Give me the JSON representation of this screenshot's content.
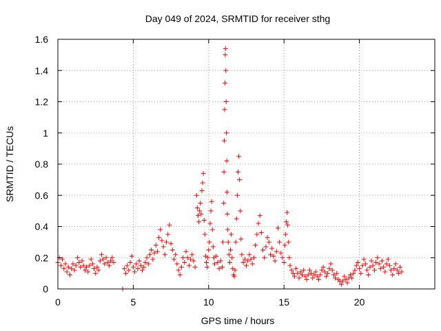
{
  "chart_data": {
    "type": "scatter",
    "title": "Day 049 of 2024, SRMTID for receiver sthg",
    "xlabel": "GPS time / hours",
    "ylabel": "SRMTID / TECUs",
    "xlim": [
      0,
      25
    ],
    "ylim": [
      0,
      1.6
    ],
    "xticks": [
      0,
      5,
      10,
      15,
      20
    ],
    "xtick_labels": [
      "0",
      "5",
      "10",
      "15",
      "20"
    ],
    "yticks": [
      0,
      0.2,
      0.4,
      0.6,
      0.8,
      1,
      1.2,
      1.4,
      1.6
    ],
    "ytick_labels": [
      "0",
      "0.2",
      "0.4",
      "0.6",
      "0.8",
      "1",
      "1.2",
      "1.4",
      "1.6"
    ],
    "grid": true,
    "marker": "+",
    "marker_color": "#ff0000",
    "series": [
      {
        "name": "SRMTID",
        "points": [
          [
            0.0,
            0.17
          ],
          [
            0.1,
            0.2
          ],
          [
            0.2,
            0.15
          ],
          [
            0.3,
            0.19
          ],
          [
            0.4,
            0.13
          ],
          [
            0.5,
            0.16
          ],
          [
            0.6,
            0.11
          ],
          [
            0.7,
            0.14
          ],
          [
            0.8,
            0.09
          ],
          [
            0.9,
            0.13
          ],
          [
            1.0,
            0.16
          ],
          [
            1.1,
            0.12
          ],
          [
            1.2,
            0.15
          ],
          [
            1.3,
            0.2
          ],
          [
            1.4,
            0.17
          ],
          [
            1.5,
            0.14
          ],
          [
            1.6,
            0.18
          ],
          [
            1.7,
            0.15
          ],
          [
            1.8,
            0.12
          ],
          [
            1.9,
            0.14
          ],
          [
            2.0,
            0.11
          ],
          [
            2.1,
            0.15
          ],
          [
            2.2,
            0.19
          ],
          [
            2.3,
            0.16
          ],
          [
            2.4,
            0.13
          ],
          [
            2.5,
            0.1
          ],
          [
            2.6,
            0.14
          ],
          [
            2.7,
            0.12
          ],
          [
            2.8,
            0.18
          ],
          [
            2.9,
            0.22
          ],
          [
            3.0,
            0.19
          ],
          [
            3.1,
            0.16
          ],
          [
            3.2,
            0.2
          ],
          [
            3.3,
            0.17
          ],
          [
            3.4,
            0.15
          ],
          [
            3.5,
            0.18
          ],
          [
            3.6,
            0.2
          ],
          [
            3.7,
            0.17
          ],
          [
            4.3,
            0.0
          ],
          [
            4.4,
            0.13
          ],
          [
            4.5,
            0.1
          ],
          [
            4.6,
            0.15
          ],
          [
            4.7,
            0.12
          ],
          [
            4.8,
            0.17
          ],
          [
            4.9,
            0.21
          ],
          [
            5.0,
            0.14
          ],
          [
            5.1,
            0.11
          ],
          [
            5.2,
            0.16
          ],
          [
            5.3,
            0.13
          ],
          [
            5.4,
            0.18
          ],
          [
            5.5,
            0.15
          ],
          [
            5.6,
            0.12
          ],
          [
            5.7,
            0.14
          ],
          [
            5.8,
            0.17
          ],
          [
            5.9,
            0.2
          ],
          [
            6.0,
            0.16
          ],
          [
            6.1,
            0.22
          ],
          [
            6.2,
            0.25
          ],
          [
            6.3,
            0.19
          ],
          [
            6.4,
            0.23
          ],
          [
            6.5,
            0.28
          ],
          [
            6.6,
            0.24
          ],
          [
            6.7,
            0.33
          ],
          [
            6.8,
            0.38
          ],
          [
            6.9,
            0.31
          ],
          [
            7.0,
            0.27
          ],
          [
            7.1,
            0.22
          ],
          [
            7.2,
            0.3
          ],
          [
            7.3,
            0.35
          ],
          [
            7.4,
            0.41
          ],
          [
            7.5,
            0.29
          ],
          [
            7.6,
            0.25
          ],
          [
            7.7,
            0.19
          ],
          [
            7.8,
            0.22
          ],
          [
            7.9,
            0.16
          ],
          [
            8.0,
            0.12
          ],
          [
            8.1,
            0.09
          ],
          [
            8.2,
            0.14
          ],
          [
            8.3,
            0.2
          ],
          [
            8.4,
            0.17
          ],
          [
            8.5,
            0.24
          ],
          [
            8.6,
            0.2
          ],
          [
            8.7,
            0.15
          ],
          [
            8.8,
            0.19
          ],
          [
            8.9,
            0.22
          ],
          [
            9.0,
            0.18
          ],
          [
            9.1,
            0.14
          ],
          [
            9.2,
            0.6
          ],
          [
            9.25,
            0.52
          ],
          [
            9.3,
            0.47
          ],
          [
            9.35,
            0.43
          ],
          [
            9.4,
            0.5
          ],
          [
            9.45,
            0.55
          ],
          [
            9.5,
            0.48
          ],
          [
            9.55,
            0.63
          ],
          [
            9.6,
            0.68
          ],
          [
            9.65,
            0.74
          ],
          [
            9.7,
            0.44
          ],
          [
            9.75,
            0.35
          ],
          [
            9.8,
            0.21
          ],
          [
            9.85,
            0.17
          ],
          [
            9.9,
            0.14
          ],
          [
            9.95,
            0.2
          ],
          [
            10.0,
            0.25
          ],
          [
            10.05,
            0.3
          ],
          [
            10.1,
            0.42
          ],
          [
            10.15,
            0.5
          ],
          [
            10.2,
            0.56
          ],
          [
            10.25,
            0.38
          ],
          [
            10.3,
            0.27
          ],
          [
            10.35,
            0.2
          ],
          [
            10.4,
            0.16
          ],
          [
            10.5,
            0.21
          ],
          [
            10.6,
            0.17
          ],
          [
            10.7,
            0.13
          ],
          [
            10.8,
            0.18
          ],
          [
            10.9,
            0.14
          ],
          [
            10.95,
            0.3
          ],
          [
            11.0,
            0.55
          ],
          [
            11.02,
            0.75
          ],
          [
            11.04,
            0.95
          ],
          [
            11.06,
            1.15
          ],
          [
            11.08,
            1.32
          ],
          [
            11.1,
            1.5
          ],
          [
            11.12,
            1.54
          ],
          [
            11.14,
            1.4
          ],
          [
            11.16,
            1.2
          ],
          [
            11.18,
            1.0
          ],
          [
            11.2,
            0.82
          ],
          [
            11.22,
            0.62
          ],
          [
            11.24,
            0.48
          ],
          [
            11.26,
            0.38
          ],
          [
            11.3,
            0.3
          ],
          [
            11.35,
            0.22
          ],
          [
            11.4,
            0.17
          ],
          [
            11.45,
            0.25
          ],
          [
            11.5,
            0.35
          ],
          [
            11.55,
            0.2
          ],
          [
            11.6,
            0.13
          ],
          [
            11.65,
            0.09
          ],
          [
            11.7,
            0.08
          ],
          [
            11.75,
            0.12
          ],
          [
            11.8,
            0.3
          ],
          [
            11.85,
            0.45
          ],
          [
            11.9,
            0.6
          ],
          [
            11.95,
            0.75
          ],
          [
            12.0,
            0.85
          ],
          [
            12.05,
            0.7
          ],
          [
            12.1,
            0.5
          ],
          [
            12.15,
            0.32
          ],
          [
            12.2,
            0.22
          ],
          [
            12.3,
            0.17
          ],
          [
            12.4,
            0.19
          ],
          [
            12.5,
            0.15
          ],
          [
            12.6,
            0.18
          ],
          [
            12.7,
            0.22
          ],
          [
            12.8,
            0.19
          ],
          [
            12.9,
            0.16
          ],
          [
            13.0,
            0.2
          ],
          [
            13.1,
            0.28
          ],
          [
            13.2,
            0.35
          ],
          [
            13.3,
            0.42
          ],
          [
            13.4,
            0.47
          ],
          [
            13.5,
            0.36
          ],
          [
            13.6,
            0.25
          ],
          [
            13.7,
            0.2
          ],
          [
            13.8,
            0.27
          ],
          [
            13.9,
            0.33
          ],
          [
            14.0,
            0.3
          ],
          [
            14.1,
            0.22
          ],
          [
            14.2,
            0.26
          ],
          [
            14.3,
            0.21
          ],
          [
            14.4,
            0.18
          ],
          [
            14.5,
            0.24
          ],
          [
            14.6,
            0.39
          ],
          [
            14.7,
            0.3
          ],
          [
            14.8,
            0.23
          ],
          [
            14.9,
            0.2
          ],
          [
            15.0,
            0.17
          ],
          [
            15.05,
            0.28
          ],
          [
            15.1,
            0.35
          ],
          [
            15.15,
            0.43
          ],
          [
            15.2,
            0.49
          ],
          [
            15.25,
            0.41
          ],
          [
            15.3,
            0.3
          ],
          [
            15.35,
            0.2
          ],
          [
            15.4,
            0.15
          ],
          [
            15.5,
            0.12
          ],
          [
            15.6,
            0.1
          ],
          [
            15.7,
            0.08
          ],
          [
            15.8,
            0.13
          ],
          [
            15.9,
            0.1
          ],
          [
            16.0,
            0.07
          ],
          [
            16.1,
            0.11
          ],
          [
            16.2,
            0.09
          ],
          [
            16.3,
            0.12
          ],
          [
            16.4,
            0.08
          ],
          [
            16.5,
            0.06
          ],
          [
            16.6,
            0.09
          ],
          [
            16.7,
            0.12
          ],
          [
            16.8,
            0.1
          ],
          [
            16.9,
            0.07
          ],
          [
            17.0,
            0.09
          ],
          [
            17.1,
            0.11
          ],
          [
            17.2,
            0.08
          ],
          [
            17.3,
            0.06
          ],
          [
            17.4,
            0.09
          ],
          [
            17.5,
            0.12
          ],
          [
            17.6,
            0.14
          ],
          [
            17.7,
            0.11
          ],
          [
            17.8,
            0.08
          ],
          [
            17.9,
            0.1
          ],
          [
            18.0,
            0.13
          ],
          [
            18.1,
            0.16
          ],
          [
            18.2,
            0.12
          ],
          [
            18.3,
            0.09
          ],
          [
            18.4,
            0.07
          ],
          [
            18.5,
            0.1
          ],
          [
            18.6,
            0.06
          ],
          [
            18.7,
            0.05
          ],
          [
            18.8,
            0.03
          ],
          [
            18.9,
            0.05
          ],
          [
            19.0,
            0.08
          ],
          [
            19.1,
            0.06
          ],
          [
            19.2,
            0.04
          ],
          [
            19.3,
            0.07
          ],
          [
            19.4,
            0.09
          ],
          [
            19.5,
            0.07
          ],
          [
            19.6,
            0.1
          ],
          [
            19.7,
            0.12
          ],
          [
            19.8,
            0.15
          ],
          [
            19.9,
            0.17
          ],
          [
            20.0,
            0.13
          ],
          [
            20.1,
            0.1
          ],
          [
            20.2,
            0.15
          ],
          [
            20.3,
            0.19
          ],
          [
            20.4,
            0.16
          ],
          [
            20.5,
            0.12
          ],
          [
            20.6,
            0.09
          ],
          [
            20.7,
            0.14
          ],
          [
            20.8,
            0.18
          ],
          [
            20.9,
            0.15
          ],
          [
            21.0,
            0.12
          ],
          [
            21.1,
            0.17
          ],
          [
            21.2,
            0.2
          ],
          [
            21.3,
            0.16
          ],
          [
            21.4,
            0.13
          ],
          [
            21.5,
            0.18
          ],
          [
            21.6,
            0.14
          ],
          [
            21.7,
            0.11
          ],
          [
            21.8,
            0.16
          ],
          [
            21.9,
            0.19
          ],
          [
            22.0,
            0.15
          ],
          [
            22.1,
            0.12
          ],
          [
            22.2,
            0.09
          ],
          [
            22.3,
            0.13
          ],
          [
            22.4,
            0.16
          ],
          [
            22.5,
            0.12
          ],
          [
            22.6,
            0.1
          ],
          [
            22.7,
            0.14
          ],
          [
            22.8,
            0.11
          ]
        ]
      }
    ]
  }
}
